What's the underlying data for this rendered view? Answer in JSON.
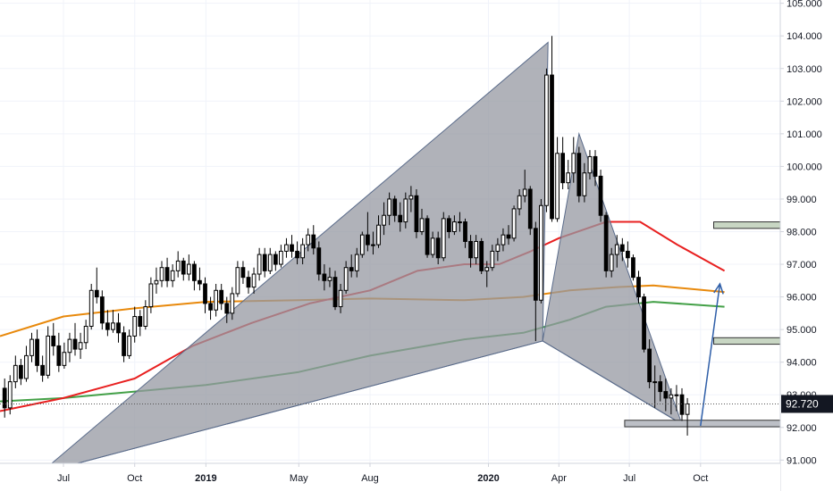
{
  "chart_data": {
    "type": "candlestick",
    "title": "",
    "y_axis": {
      "ticks": [
        "105.000",
        "104.000",
        "103.000",
        "102.000",
        "101.000",
        "100.000",
        "99.000",
        "98.000",
        "97.000",
        "96.000",
        "95.000",
        "94.000",
        "93.000",
        "92.000",
        "91.000"
      ],
      "range": [
        90.9,
        105.1
      ]
    },
    "x_axis": {
      "ticks": [
        {
          "label": "Jul",
          "date": "2018-07-01"
        },
        {
          "label": "Oct",
          "date": "2018-10-01"
        },
        {
          "label": "2019",
          "date": "2019-01-01",
          "bold": true
        },
        {
          "label": "May",
          "date": "2019-05-01"
        },
        {
          "label": "Aug",
          "date": "2019-08-01"
        },
        {
          "label": "2020",
          "date": "2020-01-01",
          "bold": true
        },
        {
          "label": "Apr",
          "date": "2020-04-01"
        },
        {
          "label": "Jul",
          "date": "2020-07-01"
        },
        {
          "label": "Oct",
          "date": "2020-10-01"
        }
      ],
      "range": [
        "2018-04-10",
        "2021-01-12"
      ]
    },
    "last_price": {
      "value": 92.72,
      "label": "92.720",
      "color": "#131722"
    },
    "candles": [
      [
        "2018-04-16",
        93.2,
        92.6,
        93.5,
        92.3
      ],
      [
        "2018-04-23",
        92.6,
        93.4,
        93.6,
        92.4
      ],
      [
        "2018-04-30",
        93.4,
        93.9,
        94.2,
        93.2
      ],
      [
        "2018-05-07",
        93.9,
        93.5,
        94.1,
        93.3
      ],
      [
        "2018-05-14",
        93.5,
        94.2,
        94.5,
        93.4
      ],
      [
        "2018-05-21",
        94.2,
        94.7,
        94.9,
        94.0
      ],
      [
        "2018-05-28",
        94.7,
        93.9,
        95.0,
        93.7
      ],
      [
        "2018-06-04",
        93.9,
        93.6,
        94.2,
        93.4
      ],
      [
        "2018-06-11",
        93.6,
        94.8,
        95.1,
        93.5
      ],
      [
        "2018-06-18",
        94.8,
        94.5,
        95.2,
        94.2
      ],
      [
        "2018-06-25",
        94.5,
        93.9,
        94.9,
        93.7
      ],
      [
        "2018-07-02",
        93.9,
        94.3,
        94.6,
        93.8
      ],
      [
        "2018-07-09",
        94.3,
        94.7,
        94.9,
        94.0
      ],
      [
        "2018-07-16",
        94.7,
        94.4,
        95.2,
        94.2
      ],
      [
        "2018-07-23",
        94.4,
        94.6,
        94.9,
        94.1
      ],
      [
        "2018-07-30",
        94.6,
        95.1,
        95.3,
        94.4
      ],
      [
        "2018-08-06",
        95.1,
        96.2,
        96.4,
        95.0
      ],
      [
        "2018-08-13",
        96.2,
        96.0,
        96.9,
        95.8
      ],
      [
        "2018-08-20",
        96.0,
        95.2,
        96.2,
        95.0
      ],
      [
        "2018-08-27",
        95.2,
        95.0,
        95.6,
        94.8
      ],
      [
        "2018-09-03",
        95.0,
        95.2,
        95.6,
        94.9
      ],
      [
        "2018-09-10",
        95.2,
        94.9,
        95.5,
        94.6
      ],
      [
        "2018-09-17",
        94.9,
        94.2,
        95.1,
        94.0
      ],
      [
        "2018-09-24",
        94.2,
        94.8,
        95.0,
        94.1
      ],
      [
        "2018-10-01",
        94.8,
        95.4,
        95.7,
        94.6
      ],
      [
        "2018-10-08",
        95.4,
        95.1,
        95.6,
        94.8
      ],
      [
        "2018-10-15",
        95.1,
        95.7,
        95.9,
        95.0
      ],
      [
        "2018-10-22",
        95.7,
        96.4,
        96.6,
        95.5
      ],
      [
        "2018-10-29",
        96.4,
        96.5,
        96.9,
        96.1
      ],
      [
        "2018-11-05",
        96.5,
        96.9,
        97.1,
        96.3
      ],
      [
        "2018-11-12",
        96.9,
        96.5,
        97.2,
        96.3
      ],
      [
        "2018-11-19",
        96.5,
        96.8,
        97.0,
        96.3
      ],
      [
        "2018-11-26",
        96.8,
        97.1,
        97.4,
        96.6
      ],
      [
        "2018-12-03",
        97.1,
        96.7,
        97.2,
        96.5
      ],
      [
        "2018-12-10",
        96.7,
        97.0,
        97.3,
        96.5
      ],
      [
        "2018-12-17",
        97.0,
        96.5,
        97.1,
        96.2
      ],
      [
        "2018-12-24",
        96.5,
        96.4,
        96.9,
        96.2
      ],
      [
        "2018-12-31",
        96.4,
        95.8,
        96.6,
        95.5
      ],
      [
        "2019-01-07",
        95.8,
        95.6,
        96.0,
        95.3
      ],
      [
        "2019-01-14",
        95.6,
        96.2,
        96.4,
        95.4
      ],
      [
        "2019-01-21",
        96.2,
        95.8,
        96.4,
        95.6
      ],
      [
        "2019-01-28",
        95.8,
        95.5,
        96.0,
        95.2
      ],
      [
        "2019-02-04",
        95.5,
        96.1,
        96.3,
        95.3
      ],
      [
        "2019-02-11",
        96.1,
        96.9,
        97.1,
        96.0
      ],
      [
        "2019-02-18",
        96.9,
        96.6,
        97.1,
        96.4
      ],
      [
        "2019-02-25",
        96.6,
        96.3,
        96.8,
        96.1
      ],
      [
        "2019-03-04",
        96.3,
        96.7,
        96.9,
        96.1
      ],
      [
        "2019-03-11",
        96.7,
        97.3,
        97.5,
        96.5
      ],
      [
        "2019-03-18",
        97.3,
        96.8,
        97.5,
        96.6
      ],
      [
        "2019-03-25",
        96.8,
        97.3,
        97.5,
        96.7
      ],
      [
        "2019-04-01",
        97.3,
        97.0,
        97.4,
        96.8
      ],
      [
        "2019-04-08",
        97.0,
        97.4,
        97.6,
        96.9
      ],
      [
        "2019-04-15",
        97.4,
        97.6,
        97.8,
        97.2
      ],
      [
        "2019-04-22",
        97.6,
        97.4,
        97.9,
        97.2
      ],
      [
        "2019-04-29",
        97.4,
        97.2,
        97.7,
        97.0
      ],
      [
        "2019-05-06",
        97.2,
        97.6,
        97.8,
        97.0
      ],
      [
        "2019-05-13",
        97.6,
        97.9,
        98.1,
        97.4
      ],
      [
        "2019-05-20",
        97.9,
        97.5,
        98.2,
        97.3
      ],
      [
        "2019-05-27",
        97.5,
        96.7,
        97.7,
        96.5
      ],
      [
        "2019-06-03",
        96.7,
        96.5,
        97.0,
        96.2
      ],
      [
        "2019-06-10",
        96.5,
        96.6,
        96.9,
        96.3
      ],
      [
        "2019-06-17",
        96.6,
        95.7,
        96.8,
        95.6
      ],
      [
        "2019-06-24",
        95.7,
        96.2,
        96.4,
        95.5
      ],
      [
        "2019-07-01",
        96.2,
        96.9,
        97.1,
        96.1
      ],
      [
        "2019-07-08",
        96.9,
        96.8,
        97.3,
        96.6
      ],
      [
        "2019-07-15",
        96.8,
        97.3,
        97.5,
        96.6
      ],
      [
        "2019-07-22",
        97.3,
        97.9,
        98.0,
        97.2
      ],
      [
        "2019-07-29",
        97.9,
        97.6,
        98.6,
        97.4
      ],
      [
        "2019-08-05",
        97.6,
        97.6,
        98.0,
        97.3
      ],
      [
        "2019-08-12",
        97.6,
        98.2,
        98.5,
        97.5
      ],
      [
        "2019-08-19",
        98.2,
        98.5,
        98.9,
        97.9
      ],
      [
        "2019-08-26",
        98.5,
        99.0,
        99.2,
        98.2
      ],
      [
        "2019-09-02",
        99.0,
        98.5,
        99.1,
        98.3
      ],
      [
        "2019-09-09",
        98.5,
        98.3,
        98.9,
        98.0
      ],
      [
        "2019-09-16",
        98.3,
        99.0,
        99.2,
        98.1
      ],
      [
        "2019-09-23",
        99.0,
        99.1,
        99.4,
        98.6
      ],
      [
        "2019-09-30",
        99.1,
        98.0,
        99.3,
        97.8
      ],
      [
        "2019-10-07",
        98.0,
        98.4,
        98.7,
        97.9
      ],
      [
        "2019-10-14",
        98.4,
        97.3,
        98.5,
        97.2
      ],
      [
        "2019-10-21",
        97.3,
        97.8,
        98.0,
        97.2
      ],
      [
        "2019-10-28",
        97.8,
        97.2,
        98.0,
        97.0
      ],
      [
        "2019-11-04",
        97.2,
        98.4,
        98.6,
        97.1
      ],
      [
        "2019-11-11",
        98.4,
        98.0,
        98.5,
        97.8
      ],
      [
        "2019-11-18",
        98.0,
        98.3,
        98.5,
        97.9
      ],
      [
        "2019-11-25",
        98.3,
        98.3,
        98.6,
        98.0
      ],
      [
        "2019-12-02",
        98.3,
        97.7,
        98.4,
        97.5
      ],
      [
        "2019-12-09",
        97.7,
        97.2,
        97.9,
        96.9
      ],
      [
        "2019-12-16",
        97.2,
        97.7,
        97.9,
        97.0
      ],
      [
        "2019-12-23",
        97.7,
        96.8,
        97.8,
        96.7
      ],
      [
        "2019-12-30",
        96.8,
        96.9,
        97.1,
        96.3
      ],
      [
        "2020-01-06",
        96.9,
        97.4,
        97.6,
        96.8
      ],
      [
        "2020-01-13",
        97.4,
        97.6,
        97.8,
        97.1
      ],
      [
        "2020-01-20",
        97.6,
        97.9,
        98.1,
        97.4
      ],
      [
        "2020-01-27",
        97.9,
        97.8,
        98.2,
        97.6
      ],
      [
        "2020-02-03",
        97.8,
        98.7,
        98.8,
        97.7
      ],
      [
        "2020-02-10",
        98.7,
        99.1,
        99.3,
        98.5
      ],
      [
        "2020-02-17",
        99.1,
        99.3,
        99.9,
        98.9
      ],
      [
        "2020-02-24",
        99.3,
        98.1,
        99.4,
        97.9
      ],
      [
        "2020-03-02",
        98.1,
        95.9,
        98.3,
        94.65
      ],
      [
        "2020-03-09",
        95.9,
        98.8,
        99.0,
        95.8
      ],
      [
        "2020-03-16",
        98.8,
        102.8,
        103.0,
        98.6
      ],
      [
        "2020-03-23",
        102.8,
        98.4,
        104.0,
        98.3
      ],
      [
        "2020-03-30",
        98.4,
        100.4,
        100.9,
        98.3
      ],
      [
        "2020-04-06",
        100.4,
        99.5,
        100.9,
        99.3
      ],
      [
        "2020-04-13",
        99.5,
        99.8,
        100.2,
        99.3
      ],
      [
        "2020-04-20",
        99.8,
        100.4,
        100.9,
        99.5
      ],
      [
        "2020-04-27",
        100.4,
        99.1,
        100.6,
        98.9
      ],
      [
        "2020-05-04",
        99.1,
        99.8,
        100.1,
        98.9
      ],
      [
        "2020-05-11",
        99.8,
        100.3,
        100.5,
        99.6
      ],
      [
        "2020-05-18",
        100.3,
        99.7,
        100.5,
        99.4
      ],
      [
        "2020-05-25",
        99.7,
        98.5,
        99.9,
        98.3
      ],
      [
        "2020-06-01",
        98.5,
        96.8,
        98.6,
        96.6
      ],
      [
        "2020-06-08",
        96.8,
        97.3,
        97.5,
        96.6
      ],
      [
        "2020-06-15",
        97.3,
        97.6,
        97.9,
        96.9
      ],
      [
        "2020-06-22",
        97.6,
        97.4,
        97.8,
        97.1
      ],
      [
        "2020-06-29",
        97.4,
        97.2,
        97.7,
        96.9
      ],
      [
        "2020-07-06",
        97.2,
        96.6,
        97.3,
        96.5
      ],
      [
        "2020-07-13",
        96.6,
        96.0,
        96.8,
        95.8
      ],
      [
        "2020-07-20",
        96.0,
        94.4,
        96.1,
        94.3
      ],
      [
        "2020-07-27",
        94.4,
        93.4,
        94.7,
        93.2
      ],
      [
        "2020-08-03",
        93.4,
        93.4,
        93.9,
        92.6
      ],
      [
        "2020-08-10",
        93.4,
        93.1,
        93.6,
        92.8
      ],
      [
        "2020-08-17",
        93.1,
        92.9,
        93.5,
        92.5
      ],
      [
        "2020-08-24",
        92.9,
        93.0,
        93.2,
        92.4
      ],
      [
        "2020-08-31",
        93.0,
        93.0,
        93.3,
        92.5
      ],
      [
        "2020-09-07",
        93.0,
        92.4,
        93.2,
        92.2
      ],
      [
        "2020-09-14",
        92.4,
        92.72,
        92.9,
        91.75
      ]
    ],
    "moving_averages": [
      {
        "color": "#e8890c",
        "points": [
          [
            "2018-04-10",
            94.8
          ],
          [
            "2018-07-01",
            95.4
          ],
          [
            "2018-10-01",
            95.65
          ],
          [
            "2019-01-01",
            95.85
          ],
          [
            "2019-05-01",
            95.9
          ],
          [
            "2019-08-01",
            95.95
          ],
          [
            "2019-12-01",
            95.9
          ],
          [
            "2020-02-15",
            96.0
          ],
          [
            "2020-04-15",
            96.2
          ],
          [
            "2020-06-15",
            96.3
          ],
          [
            "2020-08-01",
            96.35
          ],
          [
            "2020-11-01",
            96.15
          ]
        ]
      },
      {
        "color": "#43a047",
        "points": [
          [
            "2018-04-10",
            92.8
          ],
          [
            "2018-07-01",
            92.9
          ],
          [
            "2018-10-01",
            93.1
          ],
          [
            "2019-01-01",
            93.3
          ],
          [
            "2019-05-01",
            93.7
          ],
          [
            "2019-08-01",
            94.2
          ],
          [
            "2019-12-01",
            94.7
          ],
          [
            "2020-02-15",
            94.9
          ],
          [
            "2020-04-15",
            95.3
          ],
          [
            "2020-06-01",
            95.7
          ],
          [
            "2020-08-01",
            95.85
          ],
          [
            "2020-11-01",
            95.7
          ]
        ]
      },
      {
        "color": "#e82020",
        "points": [
          [
            "2018-04-10",
            92.5
          ],
          [
            "2018-07-01",
            92.9
          ],
          [
            "2018-10-01",
            93.5
          ],
          [
            "2018-12-15",
            94.5
          ],
          [
            "2019-03-01",
            95.2
          ],
          [
            "2019-05-15",
            95.8
          ],
          [
            "2019-08-01",
            96.2
          ],
          [
            "2019-10-01",
            96.8
          ],
          [
            "2019-12-01",
            97.0
          ],
          [
            "2020-01-15",
            97.0
          ],
          [
            "2020-02-25",
            97.4
          ],
          [
            "2020-04-01",
            97.8
          ],
          [
            "2020-06-01",
            98.3
          ],
          [
            "2020-07-15",
            98.3
          ],
          [
            "2020-09-01",
            97.6
          ],
          [
            "2020-11-01",
            96.8
          ]
        ]
      }
    ],
    "harmonic_pattern": {
      "points": [
        [
          "2018-06-01",
          90.6
        ],
        [
          "2020-03-18",
          103.8
        ],
        [
          "2020-03-11",
          94.65
        ],
        [
          "2020-04-27",
          101.0
        ],
        [
          "2020-09-07",
          92.1
        ]
      ],
      "fill": "#9598a1",
      "stroke": "#5a6b8a"
    },
    "zones": [
      {
        "from": "2020-10-18",
        "to": "2021-01-12",
        "top": 98.3,
        "bottom": 98.1,
        "fill": "#c8d6c3"
      },
      {
        "from": "2020-10-18",
        "to": "2021-01-12",
        "top": 94.75,
        "bottom": 94.55,
        "fill": "#c8d6c3"
      },
      {
        "from": "2020-06-25",
        "to": "2021-01-12",
        "top": 92.22,
        "bottom": 92.02,
        "fill": "#bcbfc6"
      }
    ],
    "projection_arrow": {
      "from": [
        "2020-10-01",
        92.05
      ],
      "to": [
        "2020-10-26",
        96.4
      ],
      "color": "#2e5ea8"
    },
    "colors": {
      "up": "#ffffff",
      "down": "#000000",
      "grid": "#f0f3fa"
    }
  }
}
